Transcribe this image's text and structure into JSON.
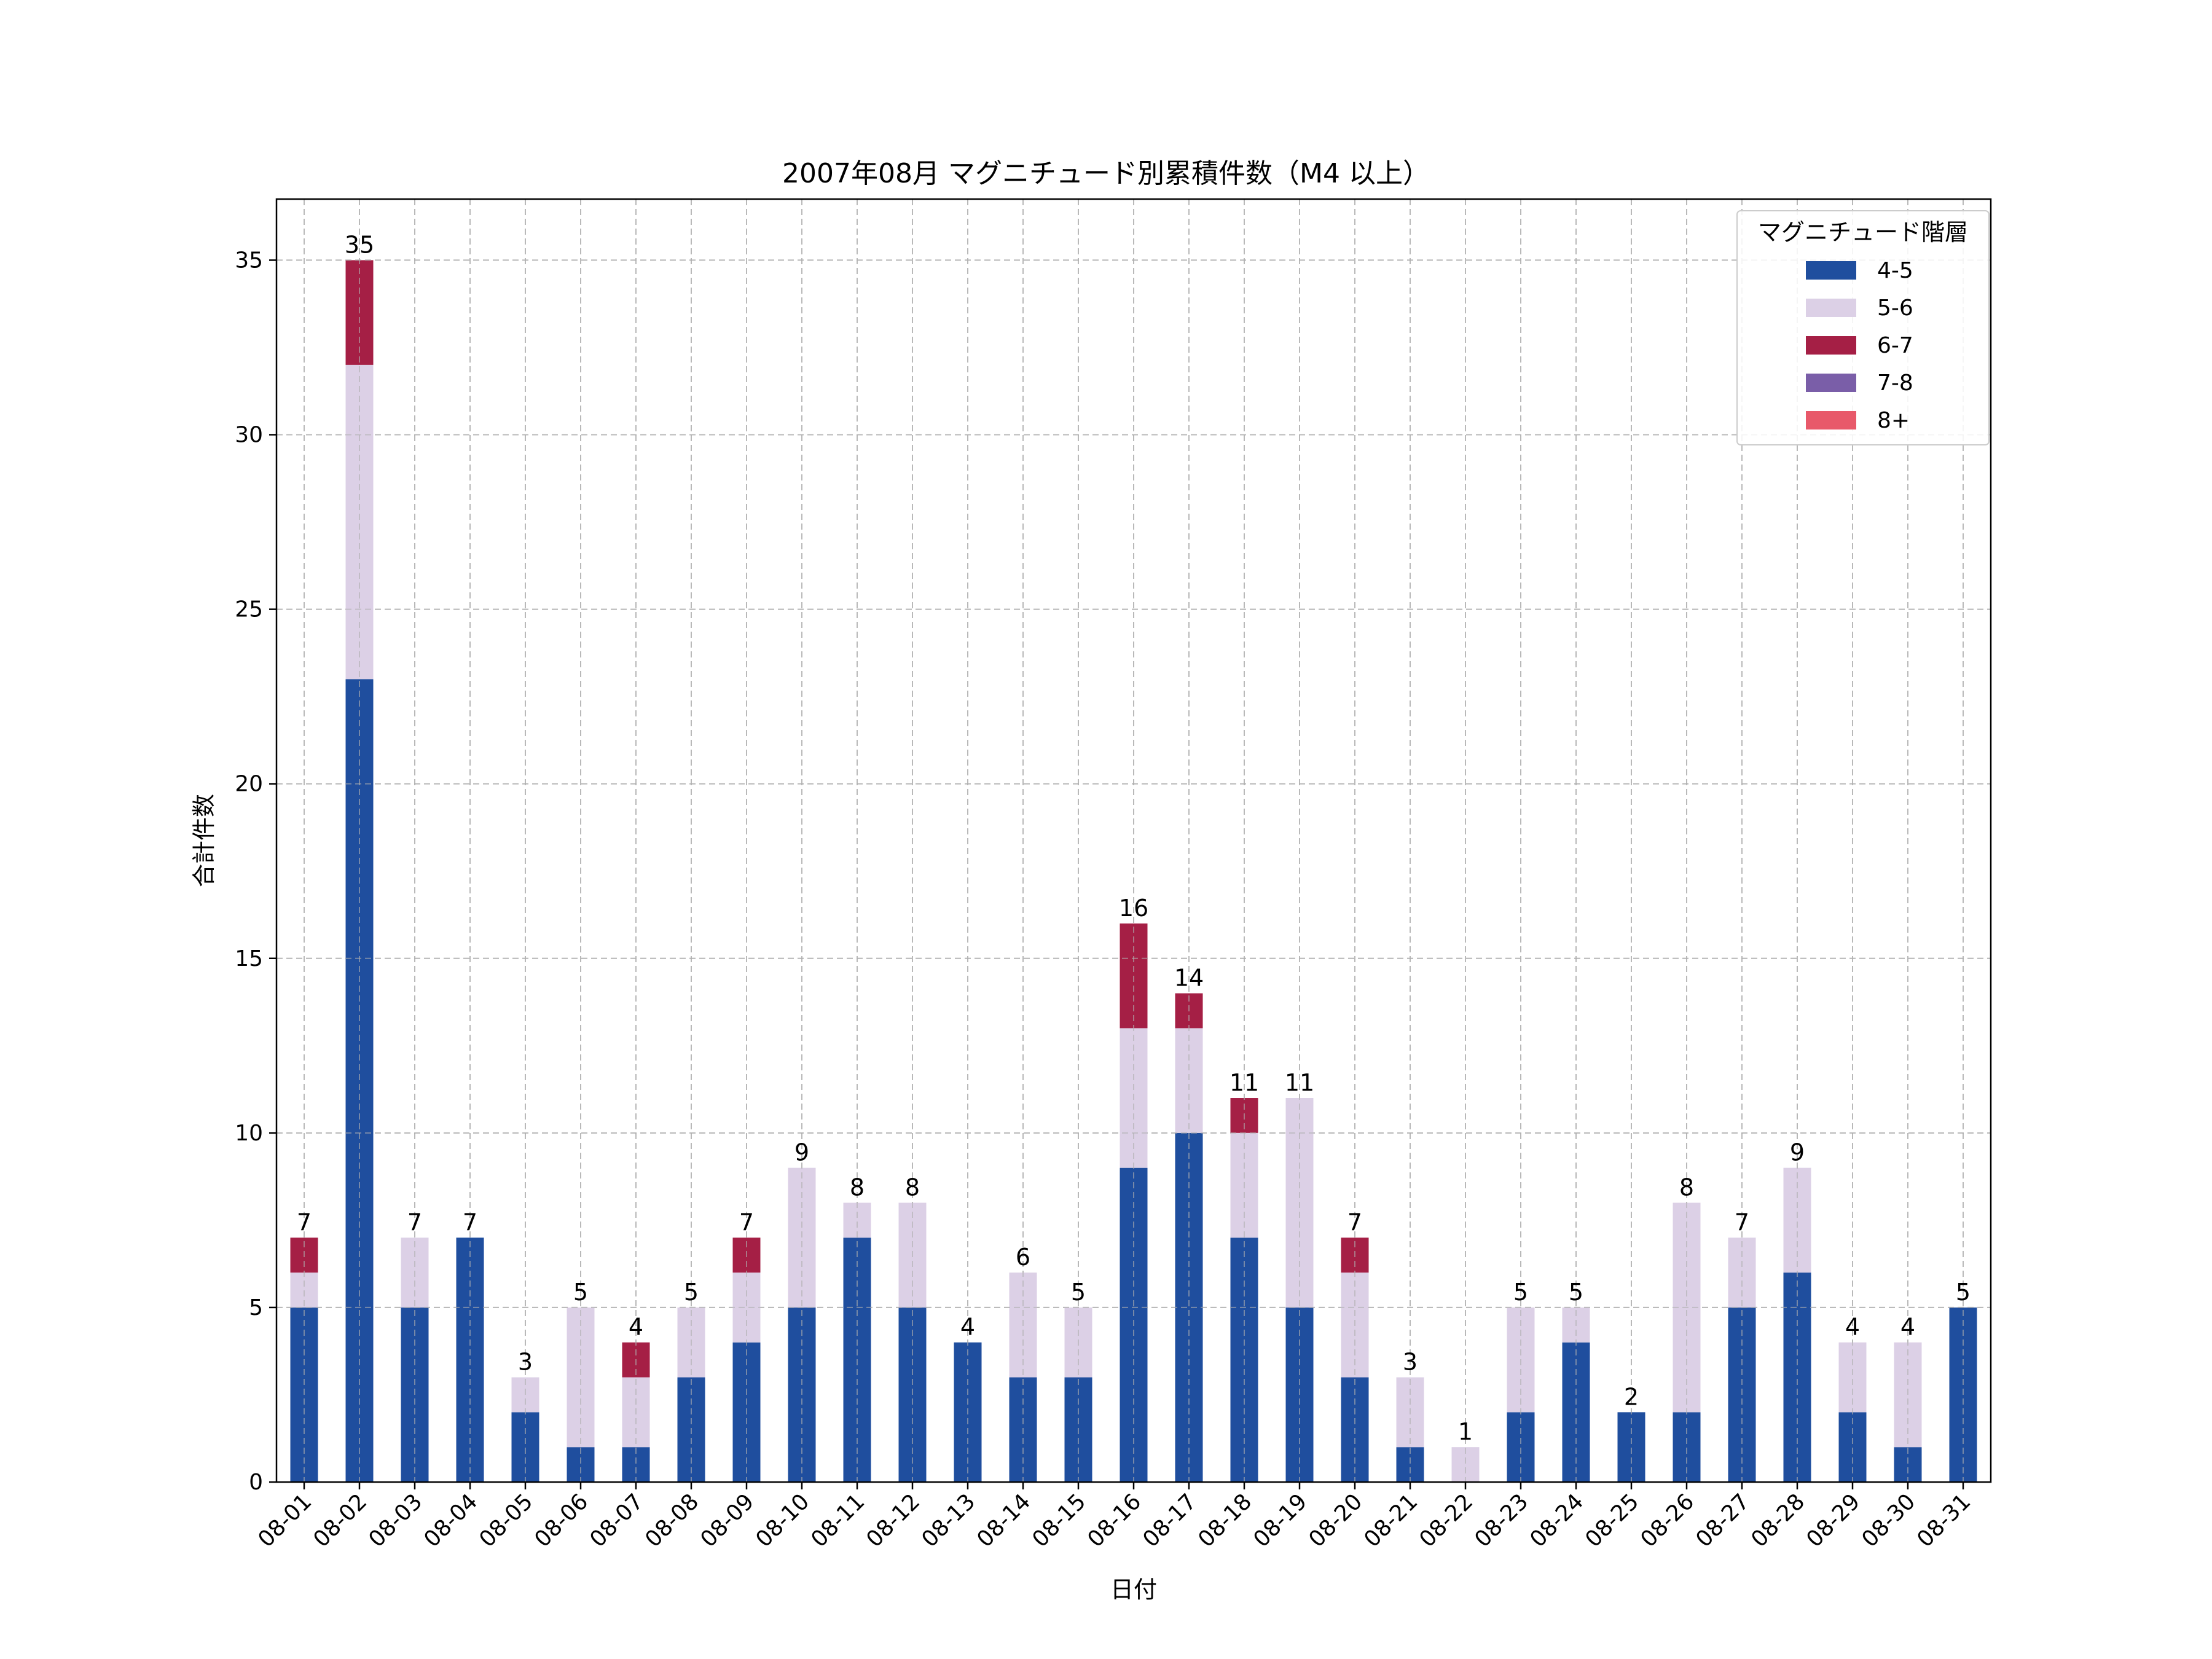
{
  "chart_data": {
    "type": "bar",
    "stacked": true,
    "title": "2007年08月 マグニチュード別累積件数（M4 以上）",
    "xlabel": "日付",
    "ylabel": "合計件数",
    "ylim": [
      0,
      36.75
    ],
    "yticks": [
      0,
      5,
      10,
      15,
      20,
      25,
      30,
      35
    ],
    "grid": true,
    "legend_title": "マグニチュード階層",
    "legend_position": "top-right",
    "categories": [
      "08-01",
      "08-02",
      "08-03",
      "08-04",
      "08-05",
      "08-06",
      "08-07",
      "08-08",
      "08-09",
      "08-10",
      "08-11",
      "08-12",
      "08-13",
      "08-14",
      "08-15",
      "08-16",
      "08-17",
      "08-18",
      "08-19",
      "08-20",
      "08-21",
      "08-22",
      "08-23",
      "08-24",
      "08-25",
      "08-26",
      "08-27",
      "08-28",
      "08-29",
      "08-30",
      "08-31"
    ],
    "series": [
      {
        "name": "4-5",
        "color": "#1f4e9e",
        "values": [
          5,
          23,
          5,
          7,
          2,
          1,
          1,
          3,
          4,
          5,
          7,
          5,
          4,
          3,
          3,
          9,
          10,
          7,
          5,
          3,
          1,
          0,
          2,
          4,
          2,
          2,
          5,
          6,
          2,
          1,
          5
        ]
      },
      {
        "name": "5-6",
        "color": "#dcd0e6",
        "values": [
          1,
          9,
          2,
          0,
          1,
          4,
          2,
          2,
          2,
          4,
          1,
          3,
          0,
          3,
          2,
          4,
          3,
          3,
          6,
          3,
          2,
          1,
          3,
          1,
          0,
          6,
          2,
          3,
          2,
          3,
          0
        ]
      },
      {
        "name": "6-7",
        "color": "#a51f45",
        "values": [
          1,
          3,
          0,
          0,
          0,
          0,
          1,
          0,
          1,
          0,
          0,
          0,
          0,
          0,
          0,
          3,
          1,
          1,
          0,
          1,
          0,
          0,
          0,
          0,
          0,
          0,
          0,
          0,
          0,
          0,
          0
        ]
      },
      {
        "name": "7-8",
        "color": "#7a5ea8",
        "values": [
          0,
          0,
          0,
          0,
          0,
          0,
          0,
          0,
          0,
          0,
          0,
          0,
          0,
          0,
          0,
          0,
          0,
          0,
          0,
          0,
          0,
          0,
          0,
          0,
          0,
          0,
          0,
          0,
          0,
          0,
          0
        ]
      },
      {
        "name": "8+",
        "color": "#e8596a",
        "values": [
          0,
          0,
          0,
          0,
          0,
          0,
          0,
          0,
          0,
          0,
          0,
          0,
          0,
          0,
          0,
          0,
          0,
          0,
          0,
          0,
          0,
          0,
          0,
          0,
          0,
          0,
          0,
          0,
          0,
          0,
          0
        ]
      }
    ],
    "totals": [
      7,
      35,
      7,
      7,
      3,
      5,
      4,
      5,
      7,
      9,
      8,
      8,
      4,
      6,
      5,
      16,
      14,
      11,
      11,
      7,
      3,
      1,
      5,
      5,
      2,
      8,
      7,
      9,
      4,
      4,
      5
    ]
  }
}
